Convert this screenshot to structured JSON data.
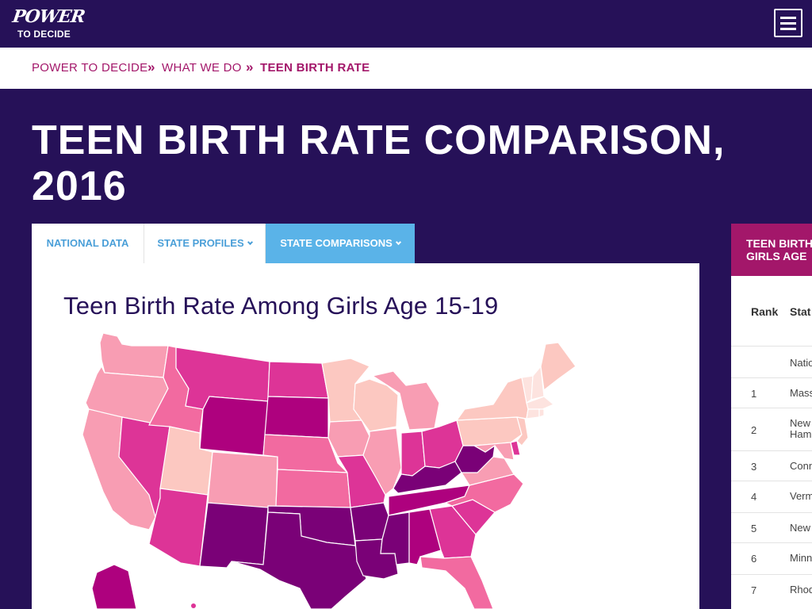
{
  "header": {
    "logo_line1": "POWER",
    "logo_line2": "TO DECIDE",
    "menu_icon": "hamburger-menu-icon"
  },
  "breadcrumb": {
    "items": [
      "POWER TO DECIDE",
      "WHAT WE DO",
      "TEEN BIRTH RATE"
    ],
    "separator": "»"
  },
  "page": {
    "title": "TEEN BIRTH RATE COMPARISON, 2016"
  },
  "tabs": [
    {
      "label": "NATIONAL DATA",
      "active": false
    },
    {
      "label": "STATE PROFILES",
      "active": false
    },
    {
      "label": "STATE COMPARISONS",
      "active": true
    }
  ],
  "map_panel": {
    "heading": "Teen Birth Rate Among Girls Age 15-19"
  },
  "ranking_panel": {
    "header_line1": "TEEN BIRTH",
    "header_line2": "GIRLS AGE",
    "col_rank": "Rank",
    "col_state": "Stat",
    "rows": [
      {
        "rank": "",
        "state": "Natio"
      },
      {
        "rank": "1",
        "state": "Mass"
      },
      {
        "rank": "2",
        "state": "New Ham"
      },
      {
        "rank": "3",
        "state": "Conn"
      },
      {
        "rank": "4",
        "state": "Verm"
      },
      {
        "rank": "5",
        "state": "New"
      },
      {
        "rank": "6",
        "state": "Minn"
      },
      {
        "rank": "7",
        "state": "Rhod"
      }
    ]
  },
  "colors": {
    "navy": "#261158",
    "magenta": "#a3176a",
    "tab_blue": "#5ab3e8",
    "scale": [
      "#fcc8c1",
      "#f89db3",
      "#f26aa0",
      "#dd3497",
      "#ae017e",
      "#7a0177"
    ]
  }
}
